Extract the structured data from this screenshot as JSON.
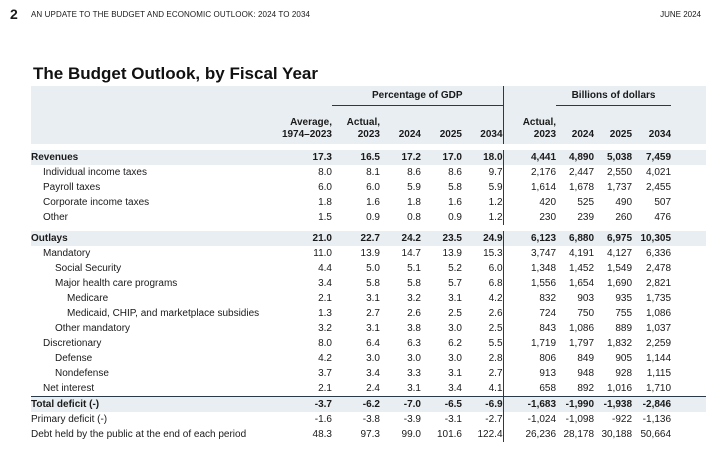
{
  "header": {
    "page_number": "2",
    "report_title": "AN UPDATE TO THE BUDGET AND ECONOMIC OUTLOOK: 2024 TO 2034",
    "date": "JUNE 2024"
  },
  "title": "The Budget Outlook, by Fiscal Year",
  "table": {
    "group_gdp": "Percentage of GDP",
    "group_dollars": "Billions of dollars",
    "col_average": "Average,\n1974–2023",
    "col_actual": "Actual,\n2023",
    "col_2024": "2024",
    "col_2025": "2025",
    "col_2034": "2034",
    "rows": [
      {
        "label": "Revenues",
        "avg": "17.3",
        "a23": "16.5",
        "p24": "17.2",
        "p25": "17.0",
        "p34": "18.0",
        "d23": "4,441",
        "d24": "4,890",
        "d25": "5,038",
        "d34": "7,459"
      },
      {
        "label": "Individual income taxes",
        "avg": "8.0",
        "a23": "8.1",
        "p24": "8.6",
        "p25": "8.6",
        "p34": "9.7",
        "d23": "2,176",
        "d24": "2,447",
        "d25": "2,550",
        "d34": "4,021"
      },
      {
        "label": "Payroll taxes",
        "avg": "6.0",
        "a23": "6.0",
        "p24": "5.9",
        "p25": "5.8",
        "p34": "5.9",
        "d23": "1,614",
        "d24": "1,678",
        "d25": "1,737",
        "d34": "2,455"
      },
      {
        "label": "Corporate income taxes",
        "avg": "1.8",
        "a23": "1.6",
        "p24": "1.8",
        "p25": "1.6",
        "p34": "1.2",
        "d23": "420",
        "d24": "525",
        "d25": "490",
        "d34": "507"
      },
      {
        "label": "Other",
        "avg": "1.5",
        "a23": "0.9",
        "p24": "0.8",
        "p25": "0.9",
        "p34": "1.2",
        "d23": "230",
        "d24": "239",
        "d25": "260",
        "d34": "476"
      },
      {
        "label": "Outlays",
        "avg": "21.0",
        "a23": "22.7",
        "p24": "24.2",
        "p25": "23.5",
        "p34": "24.9",
        "d23": "6,123",
        "d24": "6,880",
        "d25": "6,975",
        "d34": "10,305"
      },
      {
        "label": "Mandatory",
        "avg": "11.0",
        "a23": "13.9",
        "p24": "14.7",
        "p25": "13.9",
        "p34": "15.3",
        "d23": "3,747",
        "d24": "4,191",
        "d25": "4,127",
        "d34": "6,336"
      },
      {
        "label": "Social Security",
        "avg": "4.4",
        "a23": "5.0",
        "p24": "5.1",
        "p25": "5.2",
        "p34": "6.0",
        "d23": "1,348",
        "d24": "1,452",
        "d25": "1,549",
        "d34": "2,478"
      },
      {
        "label": "Major health care programs",
        "avg": "3.4",
        "a23": "5.8",
        "p24": "5.8",
        "p25": "5.7",
        "p34": "6.8",
        "d23": "1,556",
        "d24": "1,654",
        "d25": "1,690",
        "d34": "2,821"
      },
      {
        "label": "Medicare",
        "avg": "2.1",
        "a23": "3.1",
        "p24": "3.2",
        "p25": "3.1",
        "p34": "4.2",
        "d23": "832",
        "d24": "903",
        "d25": "935",
        "d34": "1,735"
      },
      {
        "label": "Medicaid, CHIP, and marketplace subsidies",
        "avg": "1.3",
        "a23": "2.7",
        "p24": "2.6",
        "p25": "2.5",
        "p34": "2.6",
        "d23": "724",
        "d24": "750",
        "d25": "755",
        "d34": "1,086"
      },
      {
        "label": "Other mandatory",
        "avg": "3.2",
        "a23": "3.1",
        "p24": "3.8",
        "p25": "3.0",
        "p34": "2.5",
        "d23": "843",
        "d24": "1,086",
        "d25": "889",
        "d34": "1,037"
      },
      {
        "label": "Discretionary",
        "avg": "8.0",
        "a23": "6.4",
        "p24": "6.3",
        "p25": "6.2",
        "p34": "5.5",
        "d23": "1,719",
        "d24": "1,797",
        "d25": "1,832",
        "d34": "2,259"
      },
      {
        "label": "Defense",
        "avg": "4.2",
        "a23": "3.0",
        "p24": "3.0",
        "p25": "3.0",
        "p34": "2.8",
        "d23": "806",
        "d24": "849",
        "d25": "905",
        "d34": "1,144"
      },
      {
        "label": "Nondefense",
        "avg": "3.7",
        "a23": "3.4",
        "p24": "3.3",
        "p25": "3.1",
        "p34": "2.7",
        "d23": "913",
        "d24": "948",
        "d25": "928",
        "d34": "1,115"
      },
      {
        "label": "Net interest",
        "avg": "2.1",
        "a23": "2.4",
        "p24": "3.1",
        "p25": "3.4",
        "p34": "4.1",
        "d23": "658",
        "d24": "892",
        "d25": "1,016",
        "d34": "1,710"
      },
      {
        "label": "Total deficit (-)",
        "avg": "-3.7",
        "a23": "-6.2",
        "p24": "-7.0",
        "p25": "-6.5",
        "p34": "-6.9",
        "d23": "-1,683",
        "d24": "-1,990",
        "d25": "-1,938",
        "d34": "-2,846"
      },
      {
        "label": "Primary deficit (-)",
        "avg": "-1.6",
        "a23": "-3.8",
        "p24": "-3.9",
        "p25": "-3.1",
        "p34": "-2.7",
        "d23": "-1,024",
        "d24": "-1,098",
        "d25": "-922",
        "d34": "-1,136"
      },
      {
        "label": "Debt held by the public at the end of each period",
        "avg": "48.3",
        "a23": "97.3",
        "p24": "99.0",
        "p25": "101.6",
        "p34": "122.4",
        "d23": "26,236",
        "d24": "28,178",
        "d25": "30,188",
        "d34": "50,664"
      }
    ]
  }
}
